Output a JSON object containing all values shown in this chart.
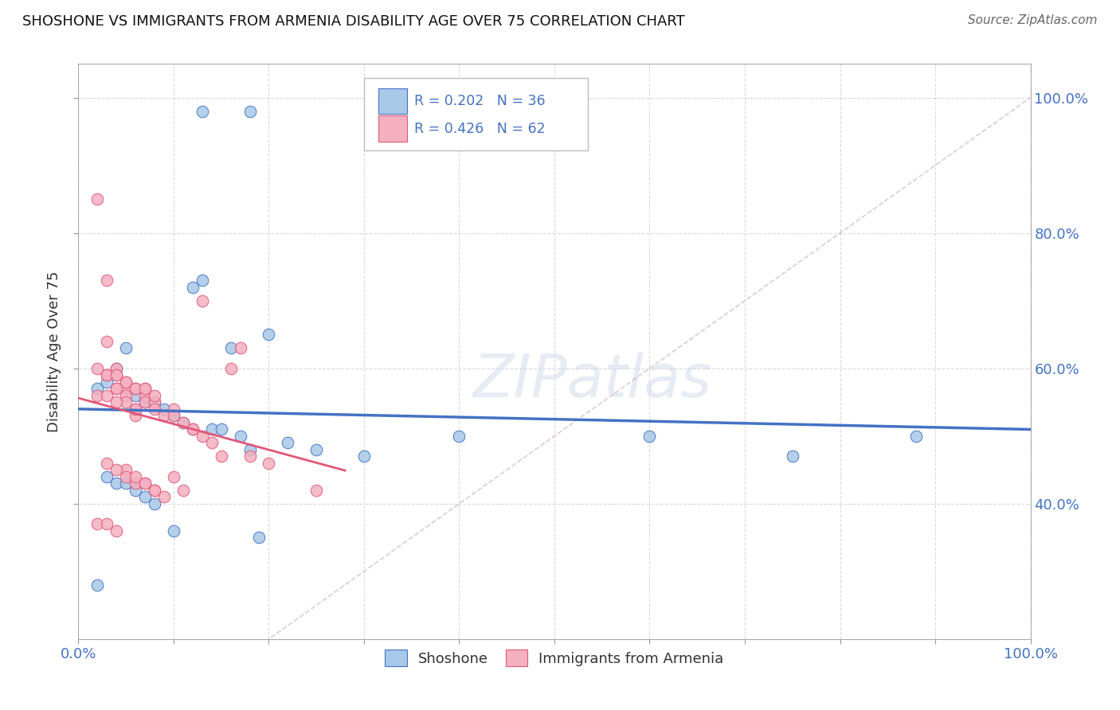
{
  "title": "SHOSHONE VS IMMIGRANTS FROM ARMENIA DISABILITY AGE OVER 75 CORRELATION CHART",
  "source": "Source: ZipAtlas.com",
  "ylabel": "Disability Age Over 75",
  "watermark": "ZIPatlas",
  "legend_label1": "Shoshone",
  "legend_label2": "Immigrants from Armenia",
  "r1": 0.202,
  "n1": 36,
  "r2": 0.426,
  "n2": 62,
  "color1": "#A8C8E8",
  "color2": "#F4B0C0",
  "line_color1": "#4472C4",
  "line_color2": "#E05878",
  "diag_color": "#D4B0B8",
  "xlim": [
    0.0,
    1.0
  ],
  "ylim": [
    0.2,
    1.05
  ],
  "shoshone_x": [
    0.13,
    0.18,
    0.05,
    0.04,
    0.03,
    0.02,
    0.06,
    0.07,
    0.08,
    0.09,
    0.1,
    0.11,
    0.14,
    0.17,
    0.2,
    0.22,
    0.25,
    0.03,
    0.04,
    0.05,
    0.06,
    0.07,
    0.08,
    0.12,
    0.13,
    0.15,
    0.18,
    0.4,
    0.6,
    0.75,
    0.88,
    0.02,
    0.19,
    0.16,
    0.3,
    0.1
  ],
  "shoshone_y": [
    0.98,
    0.98,
    0.63,
    0.6,
    0.58,
    0.57,
    0.56,
    0.55,
    0.55,
    0.54,
    0.53,
    0.52,
    0.51,
    0.5,
    0.65,
    0.49,
    0.48,
    0.44,
    0.43,
    0.43,
    0.42,
    0.41,
    0.4,
    0.72,
    0.73,
    0.51,
    0.48,
    0.5,
    0.5,
    0.47,
    0.5,
    0.28,
    0.35,
    0.63,
    0.47,
    0.36
  ],
  "armenia_x": [
    0.02,
    0.03,
    0.04,
    0.04,
    0.05,
    0.05,
    0.05,
    0.06,
    0.06,
    0.06,
    0.07,
    0.07,
    0.07,
    0.08,
    0.08,
    0.08,
    0.09,
    0.09,
    0.1,
    0.1,
    0.1,
    0.11,
    0.11,
    0.12,
    0.12,
    0.13,
    0.14,
    0.15,
    0.16,
    0.17,
    0.18,
    0.03,
    0.04,
    0.05,
    0.06,
    0.07,
    0.08,
    0.02,
    0.03,
    0.04,
    0.05,
    0.06,
    0.07,
    0.03,
    0.04,
    0.05,
    0.06,
    0.07,
    0.08,
    0.02,
    0.03,
    0.04,
    0.05,
    0.06,
    0.02,
    0.03,
    0.04,
    0.13,
    0.2,
    0.25,
    0.03,
    0.04
  ],
  "armenia_y": [
    0.85,
    0.73,
    0.57,
    0.6,
    0.57,
    0.56,
    0.45,
    0.54,
    0.53,
    0.43,
    0.56,
    0.55,
    0.43,
    0.55,
    0.54,
    0.42,
    0.53,
    0.41,
    0.54,
    0.53,
    0.44,
    0.52,
    0.42,
    0.51,
    0.51,
    0.7,
    0.49,
    0.47,
    0.6,
    0.63,
    0.47,
    0.59,
    0.59,
    0.58,
    0.57,
    0.57,
    0.56,
    0.6,
    0.59,
    0.59,
    0.58,
    0.57,
    0.57,
    0.46,
    0.45,
    0.44,
    0.44,
    0.43,
    0.42,
    0.56,
    0.56,
    0.57,
    0.55,
    0.54,
    0.37,
    0.37,
    0.36,
    0.5,
    0.46,
    0.42,
    0.64,
    0.55
  ]
}
